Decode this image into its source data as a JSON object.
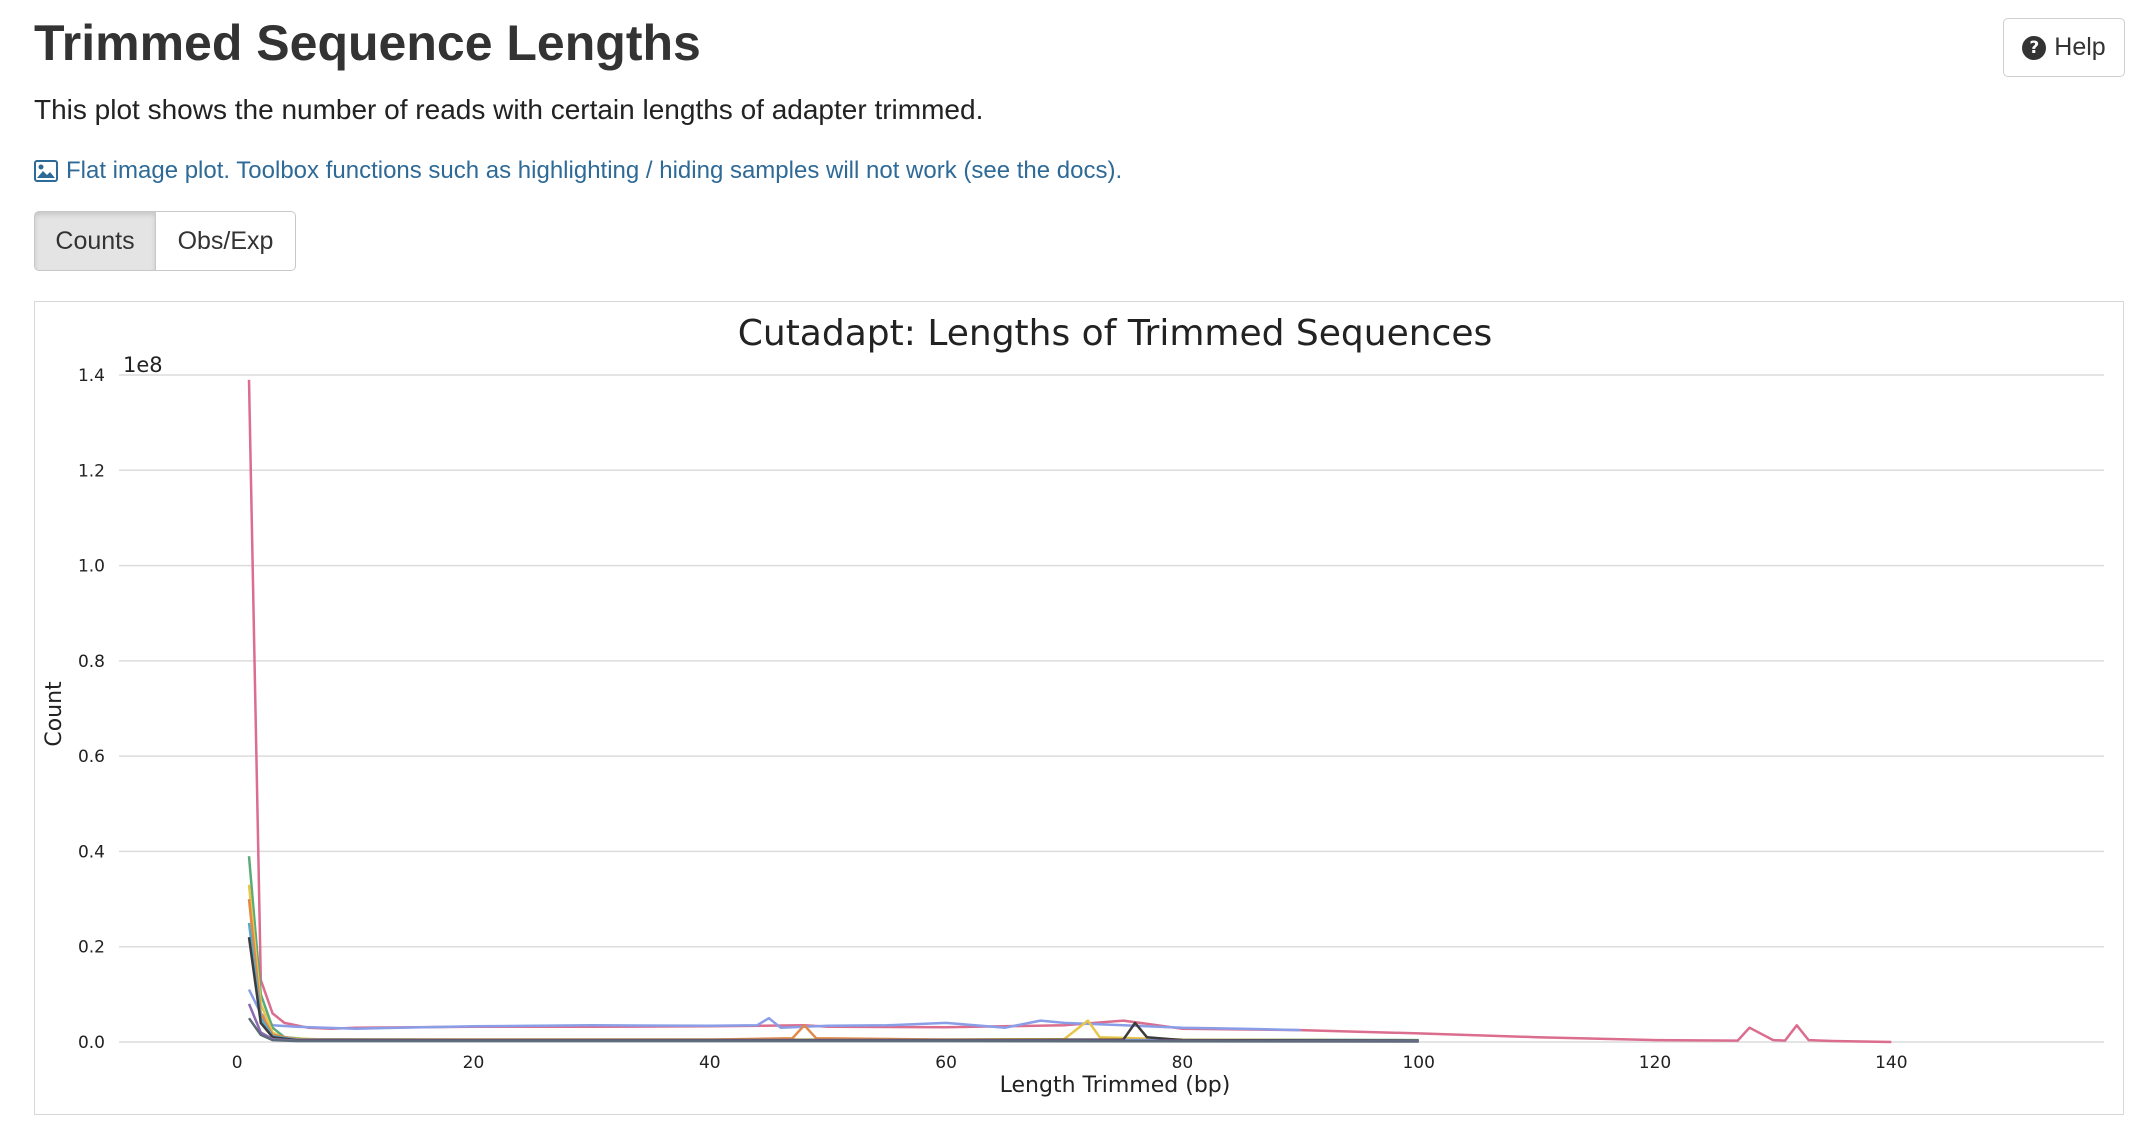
{
  "header": {
    "title": "Trimmed Sequence Lengths",
    "help_label": "Help",
    "description": "This plot shows the number of reads with certain lengths of adapter trimmed.",
    "flat_note": "Flat image plot. Toolbox functions such as highlighting / hiding samples will not work (see the docs)."
  },
  "tabs": [
    {
      "label": "Counts",
      "active": true
    },
    {
      "label": "Obs/Exp",
      "active": false
    }
  ],
  "chart_data": {
    "type": "line",
    "title": "Cutadapt: Lengths of Trimmed Sequences",
    "xlabel": "Length Trimmed (bp)",
    "ylabel": "Count",
    "y_multiplier": "1e8",
    "xlim": [
      -10,
      158
    ],
    "ylim": [
      0,
      1.4
    ],
    "xticks": [
      0,
      20,
      40,
      60,
      80,
      100,
      120,
      140
    ],
    "xtick_labels": [
      "0",
      "20",
      "40",
      "60",
      "80",
      "100",
      "120",
      "140"
    ],
    "yticks": [
      0,
      0.2,
      0.4,
      0.6,
      0.8,
      1.0,
      1.2,
      1.4
    ],
    "ytick_labels": [
      "0.0",
      "0.2",
      "0.4",
      "0.6",
      "0.8",
      "1.0",
      "1.2",
      "1.4"
    ],
    "grid": true,
    "legend": "none",
    "series": [
      {
        "color": "#db6d8f",
        "x": [
          1,
          2,
          3,
          4,
          6,
          8,
          10,
          15,
          20,
          30,
          40,
          48,
          50,
          60,
          70,
          75,
          80,
          90,
          100,
          110,
          120,
          127,
          128,
          130,
          131,
          132,
          133,
          135,
          140
        ],
        "y": [
          1.39,
          0.13,
          0.06,
          0.04,
          0.03,
          0.028,
          0.03,
          0.031,
          0.032,
          0.032,
          0.033,
          0.035,
          0.032,
          0.031,
          0.035,
          0.045,
          0.028,
          0.025,
          0.018,
          0.01,
          0.004,
          0.003,
          0.03,
          0.004,
          0.003,
          0.035,
          0.004,
          0.002,
          0.0
        ]
      },
      {
        "color": "#8a9ee8",
        "x": [
          1,
          2,
          3,
          5,
          10,
          20,
          30,
          40,
          44,
          45,
          46,
          50,
          55,
          60,
          65,
          68,
          70,
          75,
          80,
          85,
          90
        ],
        "y": [
          0.11,
          0.06,
          0.035,
          0.032,
          0.028,
          0.033,
          0.035,
          0.034,
          0.035,
          0.05,
          0.03,
          0.034,
          0.035,
          0.04,
          0.03,
          0.045,
          0.04,
          0.035,
          0.03,
          0.028,
          0.025
        ]
      },
      {
        "color": "#5aab79",
        "x": [
          1,
          2,
          3,
          4,
          6,
          10,
          20,
          40,
          60,
          80,
          100
        ],
        "y": [
          0.39,
          0.1,
          0.03,
          0.01,
          0.006,
          0.005,
          0.005,
          0.005,
          0.005,
          0.005,
          0.004
        ]
      },
      {
        "color": "#e8c64a",
        "x": [
          1,
          2,
          3,
          4,
          8,
          20,
          40,
          60,
          70,
          72,
          73,
          80,
          100
        ],
        "y": [
          0.33,
          0.08,
          0.02,
          0.008,
          0.005,
          0.005,
          0.005,
          0.005,
          0.006,
          0.045,
          0.01,
          0.005,
          0.003
        ]
      },
      {
        "color": "#e2894a",
        "x": [
          1,
          2,
          3,
          5,
          20,
          40,
          47,
          48,
          49,
          60,
          80
        ],
        "y": [
          0.3,
          0.06,
          0.015,
          0.006,
          0.005,
          0.005,
          0.008,
          0.035,
          0.008,
          0.005,
          0.004
        ]
      },
      {
        "color": "#5ba8c9",
        "x": [
          1,
          2,
          3,
          5,
          20,
          40,
          60,
          80,
          100
        ],
        "y": [
          0.25,
          0.05,
          0.012,
          0.005,
          0.004,
          0.004,
          0.004,
          0.004,
          0.003
        ]
      },
      {
        "color": "#3c3c3c",
        "x": [
          1,
          2,
          3,
          5,
          20,
          40,
          60,
          75,
          76,
          77,
          80,
          100
        ],
        "y": [
          0.22,
          0.04,
          0.01,
          0.004,
          0.004,
          0.004,
          0.004,
          0.005,
          0.04,
          0.01,
          0.004,
          0.003
        ]
      },
      {
        "color": "#8c6bb1",
        "x": [
          1,
          2,
          3,
          5,
          20,
          60,
          100
        ],
        "y": [
          0.08,
          0.02,
          0.006,
          0.003,
          0.003,
          0.003,
          0.002
        ]
      },
      {
        "color": "#5d6b7a",
        "x": [
          1,
          2,
          3,
          5,
          20,
          60,
          100
        ],
        "y": [
          0.05,
          0.015,
          0.004,
          0.002,
          0.002,
          0.002,
          0.001
        ]
      }
    ]
  }
}
